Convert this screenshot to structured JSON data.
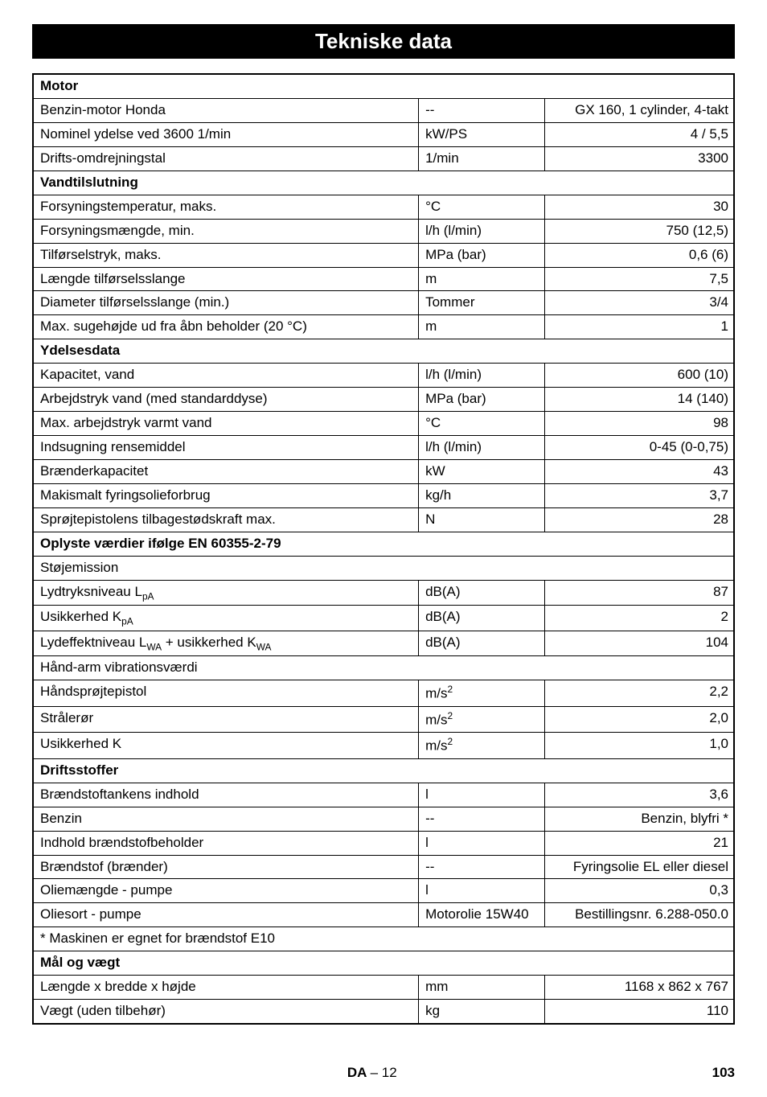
{
  "title": "Tekniske data",
  "sections": [
    {
      "header": "Motor",
      "rows": [
        {
          "label": "Benzin-motor Honda",
          "unit": "--",
          "value": "GX 160, 1 cylinder, 4-takt"
        },
        {
          "label": "Nominel ydelse ved 3600 1/min",
          "unit": "kW/PS",
          "value": "4 / 5,5"
        },
        {
          "label": "Drifts-omdrejningstal",
          "unit": "1/min",
          "value": "3300"
        }
      ]
    },
    {
      "header": "Vandtilslutning",
      "rows": [
        {
          "label": "Forsyningstemperatur, maks.",
          "unit": "°C",
          "value": "30"
        },
        {
          "label": "Forsyningsmængde, min.",
          "unit": "l/h (l/min)",
          "value": "750 (12,5)"
        },
        {
          "label": "Tilførselstryk, maks.",
          "unit": "MPa (bar)",
          "value": "0,6 (6)"
        },
        {
          "label": "Længde tilførselsslange",
          "unit": "m",
          "value": "7,5"
        },
        {
          "label": "Diameter tilførselsslange (min.)",
          "unit": "Tommer",
          "value": "3/4"
        },
        {
          "label": "Max. sugehøjde ud fra åbn beholder (20 °C)",
          "unit": "m",
          "value": "1"
        }
      ]
    },
    {
      "header": "Ydelsesdata",
      "rows": [
        {
          "label": "Kapacitet, vand",
          "unit": "l/h (l/min)",
          "value": "600 (10)"
        },
        {
          "label": "Arbejdstryk vand (med standarddyse)",
          "unit": "MPa (bar)",
          "value": "14 (140)"
        },
        {
          "label": "Max. arbejdstryk varmt vand",
          "unit": "°C",
          "value": "98"
        },
        {
          "label": "Indsugning rensemiddel",
          "unit": "l/h (l/min)",
          "value": "0-45 (0-0,75)"
        },
        {
          "label": "Brænderkapacitet",
          "unit": "kW",
          "value": "43"
        },
        {
          "label": "Makismalt fyringsolieforbrug",
          "unit": "kg/h",
          "value": "3,7"
        },
        {
          "label": "Sprøjtepistolens tilbagestødskraft max.",
          "unit": "N",
          "value": "28"
        }
      ]
    },
    {
      "header": "Oplyste værdier ifølge EN 60355-2-79",
      "subheader1": "Støjemission",
      "rows1": [
        {
          "label_html": "Lydtryksniveau L<sub>pA</sub>",
          "unit": "dB(A)",
          "value": "87"
        },
        {
          "label_html": "Usikkerhed K<sub>pA</sub>",
          "unit": "dB(A)",
          "value": "2"
        },
        {
          "label_html": "Lydeffektniveau L<sub>WA</sub> + usikkerhed K<sub>WA</sub>",
          "unit": "dB(A)",
          "value": "104"
        }
      ],
      "subheader2": "Hånd-arm vibrationsværdi",
      "rows2": [
        {
          "label": "Håndsprøjtepistol",
          "unit_html": "m/s<sup>2</sup>",
          "value": "2,2"
        },
        {
          "label": "Strålerør",
          "unit_html": "m/s<sup>2</sup>",
          "value": "2,0"
        },
        {
          "label": "Usikkerhed K",
          "unit_html": "m/s<sup>2</sup>",
          "value": "1,0"
        }
      ]
    },
    {
      "header": "Driftsstoffer",
      "rows": [
        {
          "label": "Brændstoftankens indhold",
          "unit": "l",
          "value": "3,6"
        },
        {
          "label": "Benzin",
          "unit": "--",
          "value": "Benzin, blyfri *"
        },
        {
          "label": "Indhold brændstofbeholder",
          "unit": "l",
          "value": "21"
        },
        {
          "label": "Brændstof (brænder)",
          "unit": "--",
          "value": "Fyringsolie EL eller diesel"
        },
        {
          "label": "Oliemængde - pumpe",
          "unit": "l",
          "value": "0,3"
        },
        {
          "label": "Oliesort - pumpe",
          "unit": "Motorolie 15W40",
          "value": "Bestillingsnr. 6.288-050.0"
        }
      ],
      "footnote": "* Maskinen er egnet for brændstof E10"
    },
    {
      "header": "Mål og vægt",
      "rows": [
        {
          "label": "Længde x bredde x højde",
          "unit": "mm",
          "value": "1168 x 862 x 767"
        },
        {
          "label": "Vægt (uden tilbehør)",
          "unit": "kg",
          "value": "110"
        }
      ]
    }
  ],
  "footer": {
    "lang": "DA",
    "sep": "–",
    "page_local": "12",
    "page_global": "103"
  }
}
